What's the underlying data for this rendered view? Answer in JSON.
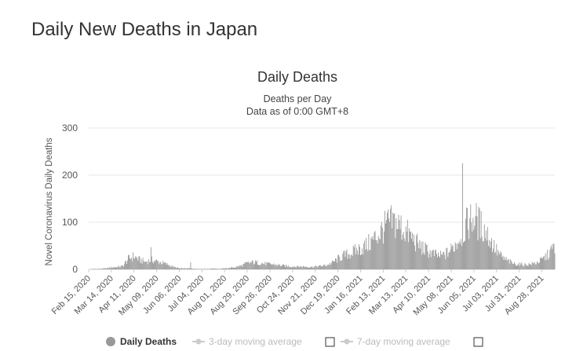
{
  "page": {
    "title": "Daily New Deaths in Japan"
  },
  "chart_data": {
    "type": "bar",
    "title": "Daily Deaths",
    "subtitle_lines": [
      "Deaths per Day",
      "Data as of 0:00 GMT+8"
    ],
    "ylabel": "Novel Coronavirus Daily Deaths",
    "xlabel": "",
    "ylim": [
      0,
      300
    ],
    "yticks": [
      0,
      100,
      200,
      300
    ],
    "grid": true,
    "bar_color": "#999999",
    "x_start": "2020-02-15",
    "x_end": "2021-09-13",
    "xtick_labels": [
      "Feb 15, 2020",
      "Mar 14, 2020",
      "Apr 11, 2020",
      "May 09, 2020",
      "Jun 06, 2020",
      "Jul 04, 2020",
      "Aug 01, 2020",
      "Aug 29, 2020",
      "Sep 26, 2020",
      "Oct 24, 2020",
      "Nov 21, 2020",
      "Dec 19, 2020",
      "Jan 16, 2021",
      "Feb 13, 2021",
      "Mar 13, 2021",
      "Apr 10, 2021",
      "May 08, 2021",
      "Jun 05, 2021",
      "Jul 03, 2021",
      "Jul 31, 2021",
      "Aug 28, 2021"
    ],
    "weekly_values": [
      0,
      1,
      1,
      2,
      4,
      5,
      7,
      22,
      28,
      20,
      16,
      20,
      17,
      14,
      10,
      5,
      2,
      2,
      2,
      1,
      1,
      1,
      2,
      1,
      2,
      3,
      5,
      8,
      13,
      15,
      14,
      12,
      11,
      10,
      8,
      7,
      6,
      6,
      6,
      5,
      6,
      7,
      9,
      14,
      22,
      29,
      33,
      39,
      44,
      50,
      60,
      72,
      86,
      98,
      100,
      92,
      80,
      68,
      55,
      45,
      38,
      32,
      28,
      32,
      42,
      58,
      78,
      100,
      110,
      96,
      82,
      60,
      40,
      25,
      18,
      12,
      11,
      10,
      11,
      14,
      20,
      30,
      45,
      58,
      62
    ],
    "spikes": [
      {
        "date": "2020-05-02",
        "value": 47
      },
      {
        "date": "2020-06-20",
        "value": 15
      },
      {
        "date": "2021-05-22",
        "value": 225
      }
    ],
    "legend": [
      {
        "name": "Daily Deaths",
        "active": true
      },
      {
        "name": "3-day moving average",
        "active": false
      },
      {
        "name": "7-day moving average",
        "active": false
      }
    ]
  }
}
